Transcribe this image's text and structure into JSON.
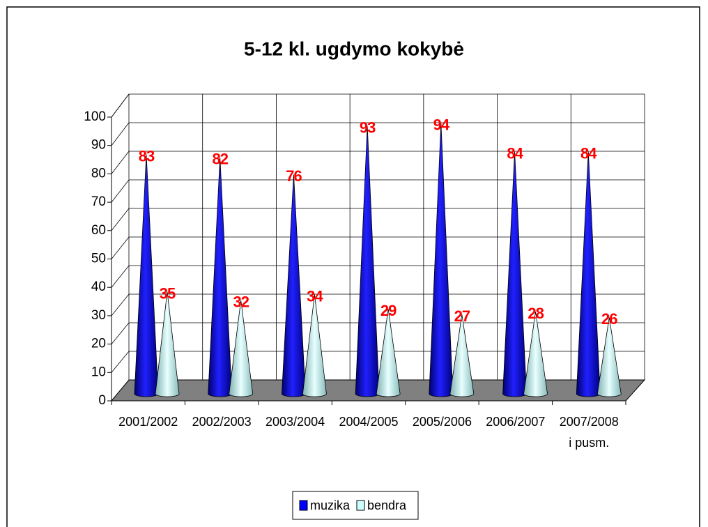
{
  "chart_data": {
    "type": "cone3d",
    "title": "5-12 kl. ugdymo kokybė",
    "categories": [
      "2001/2002",
      "2002/2003",
      "2003/2004",
      "2004/2005",
      "2005/2006",
      "2006/2007",
      "2007/2008\ni pusm."
    ],
    "series": [
      {
        "name": "muzika",
        "color": "#0000ff",
        "values": [
          83,
          82,
          76,
          93,
          94,
          84,
          84
        ]
      },
      {
        "name": "bendra",
        "color": "#ccffff",
        "values": [
          35,
          32,
          34,
          29,
          27,
          28,
          26
        ]
      }
    ],
    "ylim": [
      0,
      100
    ],
    "yticks": [
      0,
      10,
      20,
      30,
      40,
      50,
      60,
      70,
      80,
      90,
      100
    ],
    "grid": true,
    "legend": "bottom",
    "label_color": "#ff0000",
    "floor_color": "#808080"
  }
}
